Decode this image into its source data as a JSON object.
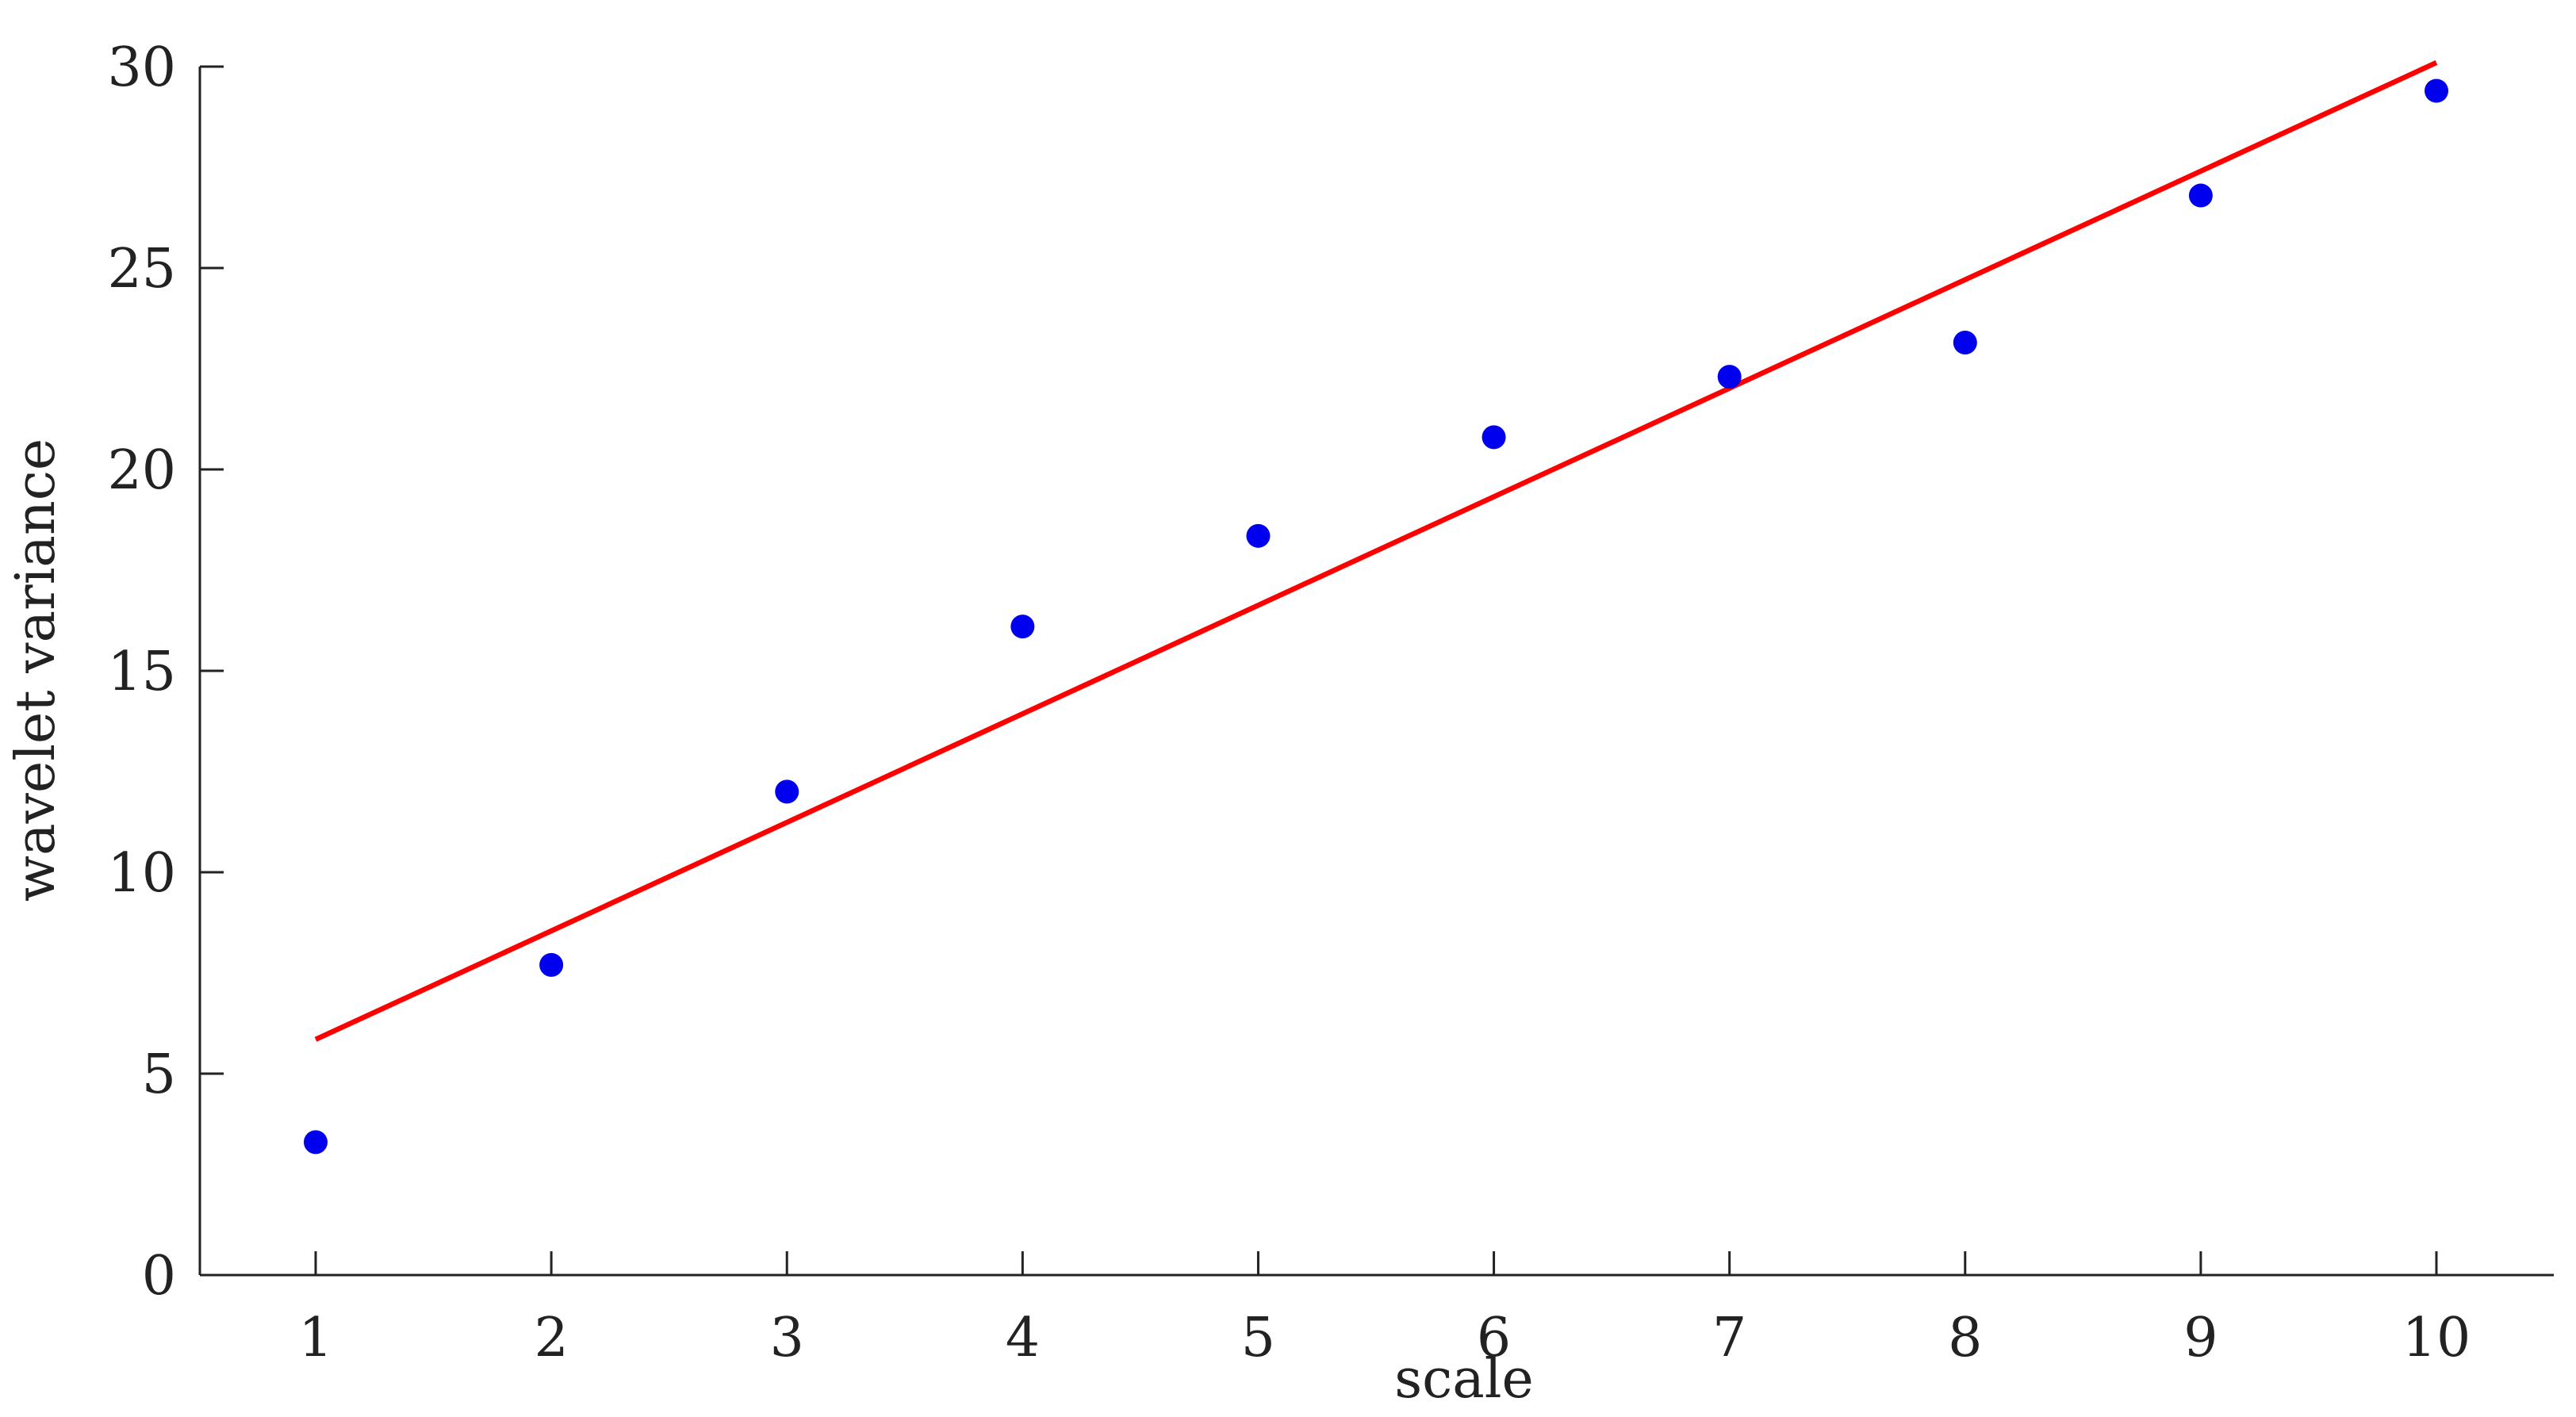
{
  "chart_data": {
    "type": "scatter",
    "xlabel": "scale",
    "ylabel": "wavelet variance",
    "xlim": [
      0.5,
      10.5
    ],
    "ylim": [
      0,
      30
    ],
    "xticks": [
      1,
      2,
      3,
      4,
      5,
      6,
      7,
      8,
      9,
      10
    ],
    "yticks": [
      0,
      5,
      10,
      15,
      20,
      25,
      30
    ],
    "grid": false,
    "series": [
      {
        "kind": "points",
        "color": "#0000ee",
        "x": [
          1,
          2,
          3,
          4,
          5,
          6,
          7,
          8,
          9,
          10
        ],
        "y": [
          3.3,
          7.7,
          12.0,
          16.1,
          18.35,
          20.8,
          22.3,
          23.15,
          26.8,
          29.4
        ]
      },
      {
        "kind": "line",
        "color": "#ff0000",
        "x": [
          1,
          10
        ],
        "y": [
          5.85,
          30.1
        ]
      }
    ]
  }
}
